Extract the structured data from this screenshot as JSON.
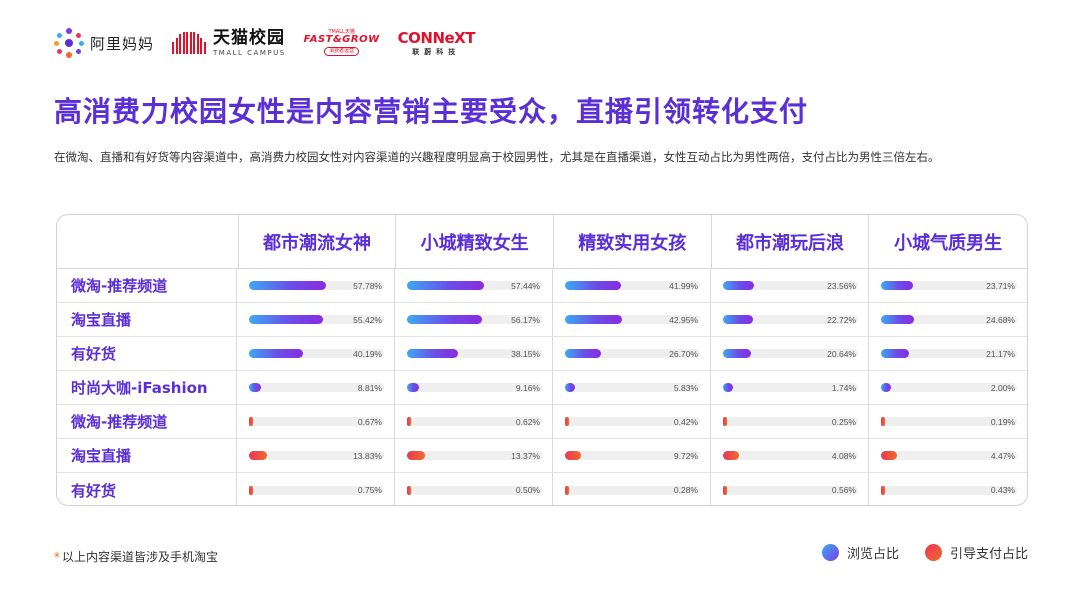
{
  "logos": {
    "alimama": "阿里妈妈",
    "tmall_cn": "天猫校园",
    "tmall_en": "TMALL CAMPUS",
    "fastgrow_small": "TMALL天猫",
    "fastgrow_main": "FAST&GROW",
    "fastgrow_tag": "消费者运营",
    "connext_main": "CONNeXT",
    "connext_sub": "联蔚科技"
  },
  "title": "高消费力校园女性是内容营销主要受众，直播引领转化支付",
  "summary": "在微淘、直播和有好货等内容渠道中，高消费力校园女性对内容渠道的兴趣程度明显高于校园男性，尤其是在直播渠道，女性互动占比为男性两倍，支付占比为男性三倍左右。",
  "footnote": {
    "star": "*",
    "text": "以上内容渠道皆涉及手机淘宝"
  },
  "legend": {
    "browse": "浏览占比",
    "pay": "引导支付占比"
  },
  "colors": {
    "title": "#5b2fd6",
    "browse_start": "#3da9f5",
    "browse_end": "#8a2be2",
    "pay_start": "#e8375a",
    "pay_end": "#f06a2a"
  },
  "chart_data": {
    "type": "table",
    "columns": [
      "都市潮流女神",
      "小城精致女生",
      "精致实用女孩",
      "都市潮玩后浪",
      "小城气质男生"
    ],
    "rows": [
      {
        "label": "微淘-推荐频道",
        "metric": "浏览占比",
        "values": [
          57.78,
          57.44,
          41.99,
          23.56,
          23.71
        ],
        "display": [
          "57.78%",
          "57.44%",
          "41.99%",
          "23.56%",
          "23.71%"
        ]
      },
      {
        "label": "淘宝直播",
        "metric": "浏览占比",
        "values": [
          55.42,
          56.17,
          42.95,
          22.72,
          24.68
        ],
        "display": [
          "55.42%",
          "56.17%",
          "42.95%",
          "22.72%",
          "24.68%"
        ]
      },
      {
        "label": "有好货",
        "metric": "浏览占比",
        "values": [
          40.19,
          38.15,
          26.7,
          20.64,
          21.17
        ],
        "display": [
          "40.19%",
          "38.15%",
          "26.70%",
          "20.64%",
          "21.17%"
        ]
      },
      {
        "label": "时尚大咖-iFashion",
        "metric": "浏览占比",
        "values": [
          8.81,
          9.16,
          5.83,
          1.74,
          2.0
        ],
        "display": [
          "8.81%",
          "9.16%",
          "5.83%",
          "1.74%",
          "2.00%"
        ]
      },
      {
        "label": "微淘-推荐频道",
        "metric": "引导支付占比",
        "values": [
          0.67,
          0.62,
          0.42,
          0.25,
          0.19
        ],
        "display": [
          "0.67%",
          "0.62%",
          "0.42%",
          "0.25%",
          "0.19%"
        ]
      },
      {
        "label": "淘宝直播",
        "metric": "引导支付占比",
        "values": [
          13.83,
          13.37,
          9.72,
          4.08,
          4.47
        ],
        "display": [
          "13.83%",
          "13.37%",
          "9.72%",
          "4.08%",
          "4.47%"
        ]
      },
      {
        "label": "有好货",
        "metric": "引导支付占比",
        "values": [
          0.75,
          0.5,
          0.28,
          0.56,
          0.43
        ],
        "display": [
          "0.75%",
          "0.50%",
          "0.28%",
          "0.56%",
          "0.43%"
        ]
      }
    ]
  }
}
